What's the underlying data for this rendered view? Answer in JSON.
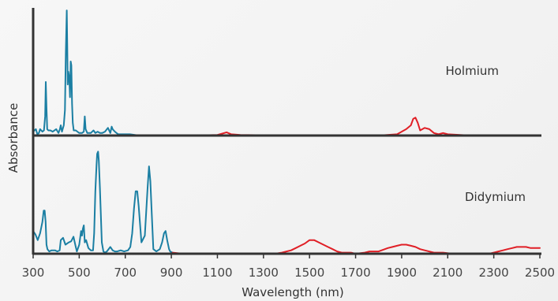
{
  "chart_data": {
    "type": "line",
    "xlabel": "Wavelength (nm)",
    "ylabel": "Absorbance",
    "xlim": [
      300,
      2500
    ],
    "x_ticks": [
      300,
      500,
      700,
      900,
      1100,
      1300,
      1500,
      1700,
      1900,
      2100,
      2300,
      2500
    ],
    "grid": false,
    "colors": {
      "uv_vis": "#1b7fa3",
      "nir": "#e01f26",
      "axis": "#333333"
    },
    "panels": [
      {
        "label": "Holmium",
        "ylim": [
          0,
          1
        ],
        "series": [
          {
            "color_key": "uv_vis",
            "x": [
              300,
              312,
              318,
              325,
              330,
              340,
              347,
              352,
              355,
              358,
              361,
              366,
              375,
              385,
              400,
              410,
              416,
              420,
              425,
              433,
              438,
              442,
              446,
              448,
              450,
              453,
              457,
              460,
              463,
              466,
              469,
              472,
              476,
              485,
              500,
              512,
              520,
              524,
              528,
              535,
              550,
              562,
              570,
              580,
              590,
              600,
              612,
              625,
              635,
              641,
              645,
              650,
              655,
              662,
              670,
              690,
              720,
              760,
              800,
              850,
              880
            ],
            "y": [
              0.03,
              0.05,
              0.01,
              0.02,
              0.05,
              0.03,
              0.04,
              0.15,
              0.42,
              0.22,
              0.05,
              0.04,
              0.04,
              0.03,
              0.05,
              0.02,
              0.05,
              0.08,
              0.03,
              0.08,
              0.2,
              0.65,
              0.98,
              0.72,
              0.4,
              0.5,
              0.45,
              0.3,
              0.58,
              0.55,
              0.25,
              0.1,
              0.04,
              0.04,
              0.02,
              0.02,
              0.03,
              0.15,
              0.05,
              0.02,
              0.02,
              0.04,
              0.02,
              0.03,
              0.02,
              0.02,
              0.03,
              0.06,
              0.02,
              0.07,
              0.05,
              0.04,
              0.03,
              0.02,
              0.01,
              0.01,
              0.01,
              0.0,
              0.0,
              0.0,
              0.0
            ]
          },
          {
            "color_key": "nir",
            "x": [
              880,
              1000,
              1100,
              1120,
              1140,
              1160,
              1200,
              1400,
              1800,
              1880,
              1920,
              1940,
              1950,
              1960,
              1970,
              1980,
              2000,
              2020,
              2040,
              2060,
              2080,
              2100,
              2200,
              2500
            ],
            "y": [
              0.0,
              0.0,
              0.005,
              0.015,
              0.025,
              0.01,
              0.005,
              0.0,
              0.0,
              0.01,
              0.05,
              0.08,
              0.13,
              0.14,
              0.1,
              0.04,
              0.06,
              0.05,
              0.02,
              0.01,
              0.02,
              0.01,
              0.0,
              0.0
            ]
          }
        ]
      },
      {
        "label": "Didymium",
        "ylim": [
          0,
          1
        ],
        "series": [
          {
            "color_key": "uv_vis",
            "x": [
              300,
              310,
              320,
              330,
              340,
              346,
              350,
              354,
              358,
              362,
              370,
              380,
              395,
              405,
              415,
              420,
              430,
              440,
              455,
              465,
              475,
              485,
              490,
              500,
              508,
              512,
              516,
              520,
              524,
              530,
              540,
              550,
              560,
              565,
              570,
              575,
              578,
              582,
              585,
              590,
              598,
              605,
              612,
              620,
              635,
              645,
              655,
              665,
              680,
              695,
              712,
              722,
              730,
              738,
              745,
              752,
              758,
              770,
              785,
              797,
              803,
              809,
              815,
              822,
              835,
              850,
              860,
              868,
              875,
              882,
              890,
              895,
              905
            ],
            "y": [
              0.2,
              0.17,
              0.12,
              0.18,
              0.28,
              0.38,
              0.38,
              0.28,
              0.08,
              0.04,
              0.02,
              0.03,
              0.03,
              0.02,
              0.03,
              0.12,
              0.14,
              0.08,
              0.1,
              0.11,
              0.15,
              0.06,
              0.02,
              0.08,
              0.2,
              0.16,
              0.22,
              0.25,
              0.1,
              0.12,
              0.05,
              0.03,
              0.03,
              0.18,
              0.55,
              0.78,
              0.88,
              0.9,
              0.82,
              0.58,
              0.1,
              0.02,
              0.01,
              0.02,
              0.06,
              0.03,
              0.02,
              0.02,
              0.03,
              0.02,
              0.03,
              0.06,
              0.18,
              0.4,
              0.55,
              0.55,
              0.42,
              0.1,
              0.16,
              0.58,
              0.77,
              0.64,
              0.35,
              0.04,
              0.02,
              0.04,
              0.1,
              0.18,
              0.2,
              0.12,
              0.04,
              0.02,
              0.01
            ]
          },
          {
            "color_key": "nir",
            "x": [
              905,
              950,
              1000,
              1100,
              1200,
              1300,
              1350,
              1380,
              1400,
              1420,
              1440,
              1460,
              1480,
              1500,
              1520,
              1540,
              1560,
              1580,
              1600,
              1620,
              1640,
              1660,
              1680,
              1700,
              1740,
              1760,
              1800,
              1840,
              1860,
              1880,
              1900,
              1920,
              1940,
              1960,
              1980,
              2000,
              2040,
              2080,
              2120,
              2200,
              2280,
              2300,
              2320,
              2340,
              2360,
              2380,
              2400,
              2420,
              2440,
              2460,
              2480,
              2500
            ],
            "y": [
              0.01,
              0.0,
              0.0,
              0.0,
              0.0,
              0.0,
              0.0,
              0.01,
              0.02,
              0.03,
              0.05,
              0.07,
              0.09,
              0.12,
              0.12,
              0.1,
              0.08,
              0.06,
              0.04,
              0.02,
              0.01,
              0.01,
              0.01,
              0.0,
              0.01,
              0.02,
              0.02,
              0.05,
              0.06,
              0.07,
              0.08,
              0.08,
              0.07,
              0.06,
              0.04,
              0.03,
              0.01,
              0.01,
              0.0,
              0.0,
              0.0,
              0.01,
              0.02,
              0.03,
              0.04,
              0.05,
              0.06,
              0.06,
              0.06,
              0.05,
              0.05,
              0.05
            ]
          }
        ]
      }
    ]
  }
}
